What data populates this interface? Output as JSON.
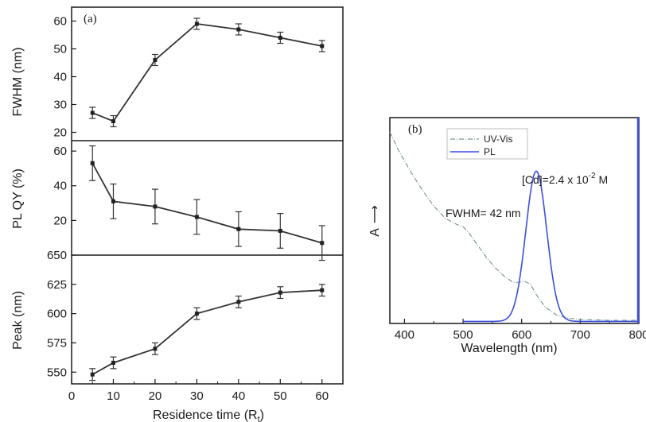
{
  "chart_data": [
    {
      "type": "line",
      "panel_label": "(a)",
      "xlabel": "Residence time (R",
      "xlabel_sub": "t",
      "xlabel_close": ")",
      "xlim": [
        0,
        65
      ],
      "x_ticks": [
        0,
        10,
        20,
        30,
        40,
        50,
        60
      ],
      "x": [
        5,
        10,
        20,
        30,
        40,
        50,
        60
      ],
      "subplots": [
        {
          "ylabel": "FWHM (nm)",
          "ylim": [
            17,
            65
          ],
          "y_ticks": [
            20,
            30,
            40,
            50,
            60
          ],
          "values": [
            27,
            24,
            46,
            59,
            57,
            54,
            51
          ],
          "errors": [
            2,
            2,
            2,
            2,
            2,
            2,
            2
          ]
        },
        {
          "ylabel": "PL QY (%)",
          "ylim": [
            0,
            66
          ],
          "y_ticks": [
            20,
            40,
            60
          ],
          "values": [
            53,
            31,
            28,
            22,
            15,
            14,
            7
          ],
          "errors": [
            10,
            10,
            10,
            10,
            10,
            10,
            10
          ]
        },
        {
          "ylabel": "Peak (nm)",
          "ylim": [
            540,
            650
          ],
          "y_ticks": [
            550,
            575,
            600,
            625,
            650
          ],
          "values": [
            548,
            558,
            570,
            600,
            610,
            618,
            620
          ],
          "errors": [
            5,
            5,
            5,
            5,
            5,
            5,
            5
          ]
        }
      ]
    },
    {
      "type": "line",
      "panel_label": "(b)",
      "xlabel": "Wavelength (nm)",
      "ylabel": "A",
      "ylabel_arrow": "⟶",
      "xlim": [
        375,
        800
      ],
      "x_ticks": [
        400,
        500,
        600,
        700,
        800
      ],
      "y_ticks": [],
      "legend": [
        "UV-Vis",
        "PL"
      ],
      "legend_position": "top-left",
      "annotations": {
        "conc_prefix": "[Cd]=2.4 x 10",
        "conc_exp": "-2",
        "conc_suffix": " M",
        "fwhm": "FWHM= 42 nm"
      },
      "series": [
        {
          "name": "UV-Vis",
          "color": "#7f9a8a",
          "style": "dash-dot",
          "x": [
            375,
            390,
            410,
            430,
            450,
            470,
            490,
            500,
            510,
            525,
            540,
            555,
            570,
            585,
            595,
            605,
            615,
            625,
            640,
            660,
            680,
            700,
            750,
            800
          ],
          "y": [
            0.93,
            0.84,
            0.74,
            0.65,
            0.57,
            0.51,
            0.48,
            0.47,
            0.44,
            0.38,
            0.32,
            0.27,
            0.23,
            0.2,
            0.2,
            0.205,
            0.19,
            0.14,
            0.08,
            0.04,
            0.025,
            0.02,
            0.015,
            0.015
          ]
        },
        {
          "name": "PL",
          "color": "#3b4fe0",
          "style": "solid",
          "peak": 625,
          "fwhm": 42,
          "max": 0.73,
          "baseline": 0.01,
          "x_range": [
            500,
            800
          ]
        }
      ]
    }
  ]
}
